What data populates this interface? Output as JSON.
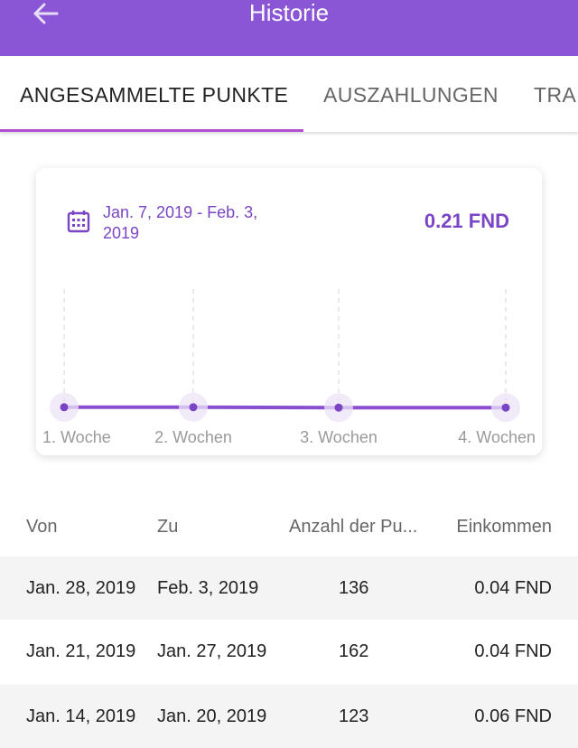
{
  "appbar": {
    "title": "Historie"
  },
  "tabs": [
    {
      "label": "ANGESAMMELTE PUNKTE",
      "active": true
    },
    {
      "label": "AUSZAHLUNGEN",
      "active": false
    },
    {
      "label": "TRA",
      "active": false
    }
  ],
  "summary": {
    "date_range_line1": "Jan. 7, 2019 - Feb. 3,",
    "date_range_line2": "2019",
    "total": "0.21 FND"
  },
  "chart_data": {
    "type": "line",
    "categories": [
      "1. Woche",
      "2. Wochen",
      "3. Wochen",
      "4. Wochen"
    ],
    "series": [
      {
        "values": [
          0.06,
          0.06,
          0.04,
          0.04
        ]
      }
    ],
    "colors": {
      "line": "#8a4fd1",
      "point": "#7a45c4",
      "halo": "#ece3f7"
    },
    "grid": false
  },
  "table": {
    "headers": {
      "von": "Von",
      "zu": "Zu",
      "anzahl": "Anzahl der Pu...",
      "einkommen": "Einkommen"
    },
    "rows": [
      {
        "von": "Jan. 28, 2019",
        "zu": "Feb. 3, 2019",
        "anzahl": "136",
        "einkommen": "0.04 FND"
      },
      {
        "von": "Jan. 21, 2019",
        "zu": "Jan. 27, 2019",
        "anzahl": "162",
        "einkommen": "0.04 FND"
      },
      {
        "von": "Jan. 14, 2019",
        "zu": "Jan. 20, 2019",
        "anzahl": "123",
        "einkommen": "0.06 FND"
      }
    ]
  },
  "colors": {
    "appbar": "#8a56d6",
    "accent": "#7a45c4",
    "tab_indicator": "#b04fd0"
  }
}
